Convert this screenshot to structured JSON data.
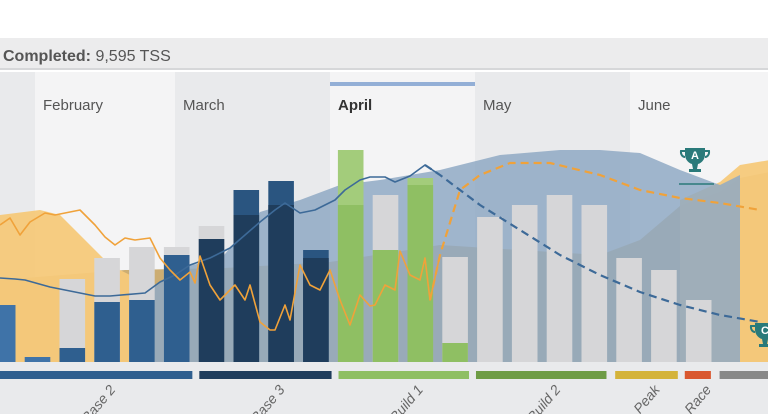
{
  "summary": {
    "label": "Completed:",
    "value": "9,595 TSS"
  },
  "chart_data": {
    "type": "bar",
    "title": "Completed: 9,595 TSS",
    "x_unit": "day",
    "y_unit": "TSS",
    "ylim": [
      0,
      950
    ],
    "months": [
      {
        "label": "",
        "start_day": 0,
        "end_day": 7,
        "shade": "dark"
      },
      {
        "label": "February",
        "start_day": 7,
        "end_day": 35,
        "shade": "light"
      },
      {
        "label": "March",
        "start_day": 35,
        "end_day": 66,
        "shade": "dark"
      },
      {
        "label": "April",
        "start_day": 66,
        "end_day": 95,
        "shade": "light",
        "current": true
      },
      {
        "label": "May",
        "start_day": 95,
        "end_day": 126,
        "shade": "dark"
      },
      {
        "label": "June",
        "start_day": 126,
        "end_day": 154,
        "shade": "light"
      }
    ],
    "weeks": [
      {
        "completed": 228,
        "planned": 0,
        "phase": 0
      },
      {
        "completed": 20,
        "planned": 0,
        "phase": 0
      },
      {
        "completed": 56,
        "planned": 332,
        "phase": 0
      },
      {
        "completed": 240,
        "planned": 416,
        "phase": 0
      },
      {
        "completed": 248,
        "planned": 460,
        "phase": 0
      },
      {
        "completed": 428,
        "planned": 460,
        "phase": 0
      },
      {
        "completed": 492,
        "planned": 544,
        "phase": 1
      },
      {
        "completed": 688,
        "planned": 588,
        "phase": 1
      },
      {
        "completed": 724,
        "planned": 628,
        "phase": 1
      },
      {
        "completed": 448,
        "planned": 416,
        "phase": 1
      },
      {
        "completed": 848,
        "planned": 628,
        "phase": 2
      },
      {
        "completed": 448,
        "planned": 668,
        "phase": 2
      },
      {
        "completed": 736,
        "planned": 708,
        "phase": 2
      },
      {
        "completed": 76,
        "planned": 420,
        "phase": 2
      },
      {
        "completed": 0,
        "planned": 580,
        "phase": 3
      },
      {
        "completed": 0,
        "planned": 628,
        "phase": 3
      },
      {
        "completed": 0,
        "planned": 668,
        "phase": 3
      },
      {
        "completed": 0,
        "planned": 628,
        "phase": 3
      },
      {
        "completed": 0,
        "planned": 416,
        "phase": 4
      },
      {
        "completed": 0,
        "planned": 368,
        "phase": 4
      },
      {
        "completed": 0,
        "planned": 248,
        "phase": 5
      }
    ],
    "phases": [
      {
        "label": "Base 2",
        "color": "#2f5f8f",
        "light": "#3f73a8",
        "start_week": -0.3,
        "end_week": 5.45
      },
      {
        "label": "Base 3",
        "color": "#1f3d5c",
        "light": "#2a5580",
        "start_week": 5.65,
        "end_week": 9.45
      },
      {
        "label": "Build 1",
        "color": "#8fbf63",
        "light": "#a3cc7b",
        "start_week": 9.65,
        "end_week": 13.4
      },
      {
        "label": "Build 2",
        "color": "#6e9c45",
        "light": "#82ad5a",
        "start_week": 13.6,
        "end_week": 17.35
      },
      {
        "label": "Peak",
        "color": "#d4b33a",
        "light": "#dcc15a",
        "start_week": 17.6,
        "end_week": 19.4
      },
      {
        "label": "Race",
        "color": "#d9572f",
        "light": "#e06d4a",
        "start_week": 19.6,
        "end_week": 20.35
      },
      {
        "label": "",
        "color": "#888888",
        "light": "#999999",
        "start_week": 20.6,
        "end_week": 22.2
      }
    ],
    "areas": [
      {
        "id": "gold-area",
        "color": "#c9a96a",
        "points": [
          [
            0,
            328
          ],
          [
            25,
            368
          ],
          [
            45,
            376
          ],
          [
            66,
            400
          ],
          [
            88,
            468
          ],
          [
            104,
            448
          ],
          [
            120,
            428
          ],
          [
            128,
            488
          ],
          [
            136,
            624
          ],
          [
            144,
            680
          ],
          [
            148,
            736
          ],
          [
            154,
            760
          ]
        ]
      },
      {
        "id": "light-orange-area-left",
        "color": "#f5c97a",
        "points": [
          [
            0,
            588
          ],
          [
            8,
            608
          ],
          [
            12,
            588
          ],
          [
            18,
            468
          ],
          [
            22,
            388
          ],
          [
            26,
            348
          ],
          [
            30,
            330
          ]
        ]
      },
      {
        "id": "light-orange-area-right",
        "color": "#f5c97a",
        "points": [
          [
            136,
            648
          ],
          [
            144,
            720
          ],
          [
            148,
            788
          ],
          [
            154,
            808
          ]
        ]
      },
      {
        "id": "projected-fitness-area",
        "color": "#8fa9c4",
        "points": [
          [
            30,
            290
          ],
          [
            36,
            380
          ],
          [
            44,
            408
          ],
          [
            52,
            600
          ],
          [
            60,
            648
          ],
          [
            68,
            708
          ],
          [
            76,
            728
          ],
          [
            88,
            768
          ],
          [
            100,
            828
          ],
          [
            112,
            848
          ],
          [
            120,
            848
          ],
          [
            128,
            836
          ],
          [
            136,
            768
          ],
          [
            144,
            708
          ],
          [
            148,
            748
          ]
        ]
      }
    ],
    "lines": [
      {
        "id": "fitness-line",
        "color": "#3d6a98",
        "style": "solid",
        "points": [
          [
            0,
            336
          ],
          [
            3,
            332
          ],
          [
            5,
            328
          ],
          [
            10,
            300
          ],
          [
            16,
            276
          ],
          [
            19,
            264
          ],
          [
            22,
            264
          ],
          [
            29,
            276
          ],
          [
            32,
            320
          ],
          [
            35,
            348
          ],
          [
            38,
            388
          ],
          [
            42,
            416
          ],
          [
            46,
            456
          ],
          [
            49,
            508
          ],
          [
            52,
            560
          ],
          [
            55,
            608
          ],
          [
            57,
            636
          ],
          [
            60,
            596
          ],
          [
            63,
            608
          ],
          [
            67,
            648
          ],
          [
            69,
            688
          ],
          [
            72,
            728
          ],
          [
            74,
            740
          ],
          [
            77,
            740
          ],
          [
            79,
            720
          ],
          [
            82,
            744
          ],
          [
            85,
            788
          ],
          [
            88,
            748
          ]
        ]
      },
      {
        "id": "fitness-projection-line",
        "color": "#3d6a98",
        "style": "dashed",
        "points": [
          [
            85,
            788
          ],
          [
            88,
            748
          ],
          [
            92,
            688
          ],
          [
            96,
            628
          ],
          [
            104,
            528
          ],
          [
            112,
            428
          ],
          [
            120,
            348
          ],
          [
            128,
            280
          ],
          [
            136,
            228
          ],
          [
            144,
            188
          ],
          [
            152,
            160
          ]
        ]
      },
      {
        "id": "fatigue-line",
        "color": "#f0a23a",
        "style": "solid",
        "points": [
          [
            0,
            548
          ],
          [
            2,
            576
          ],
          [
            4,
            508
          ],
          [
            6,
            560
          ],
          [
            9,
            596
          ],
          [
            11,
            588
          ],
          [
            14,
            600
          ],
          [
            16,
            608
          ],
          [
            19,
            548
          ],
          [
            21,
            500
          ],
          [
            23,
            468
          ],
          [
            25,
            496
          ],
          [
            27,
            488
          ],
          [
            30,
            496
          ],
          [
            32,
            416
          ],
          [
            34,
            368
          ],
          [
            36,
            328
          ],
          [
            38,
            360
          ],
          [
            39,
            316
          ],
          [
            40,
            424
          ],
          [
            42,
            308
          ],
          [
            44,
            248
          ],
          [
            47,
            308
          ],
          [
            49,
            248
          ],
          [
            50,
            308
          ],
          [
            52,
            160
          ],
          [
            54,
            128
          ],
          [
            55,
            128
          ],
          [
            57,
            228
          ],
          [
            58,
            168
          ],
          [
            60,
            388
          ],
          [
            62,
            308
          ],
          [
            64,
            288
          ],
          [
            66,
            368
          ],
          [
            68,
            248
          ],
          [
            70,
            148
          ],
          [
            72,
            268
          ],
          [
            74,
            224
          ],
          [
            75,
            228
          ],
          [
            77,
            308
          ],
          [
            79,
            288
          ],
          [
            80,
            444
          ],
          [
            82,
            348
          ],
          [
            84,
            328
          ],
          [
            85,
            416
          ],
          [
            86,
            248
          ],
          [
            88,
            428
          ]
        ]
      },
      {
        "id": "fatigue-projection-line",
        "color": "#f0a23a",
        "style": "dashed",
        "points": [
          [
            86,
            248
          ],
          [
            88,
            428
          ],
          [
            92,
            688
          ],
          [
            96,
            748
          ],
          [
            102,
            796
          ],
          [
            110,
            796
          ],
          [
            120,
            748
          ],
          [
            128,
            688
          ],
          [
            136,
            656
          ],
          [
            144,
            636
          ],
          [
            152,
            608
          ]
        ]
      }
    ],
    "events": [
      {
        "label": "A",
        "day": 139,
        "priority": "A"
      },
      {
        "label": "C",
        "day": 153,
        "priority": "C"
      }
    ]
  }
}
